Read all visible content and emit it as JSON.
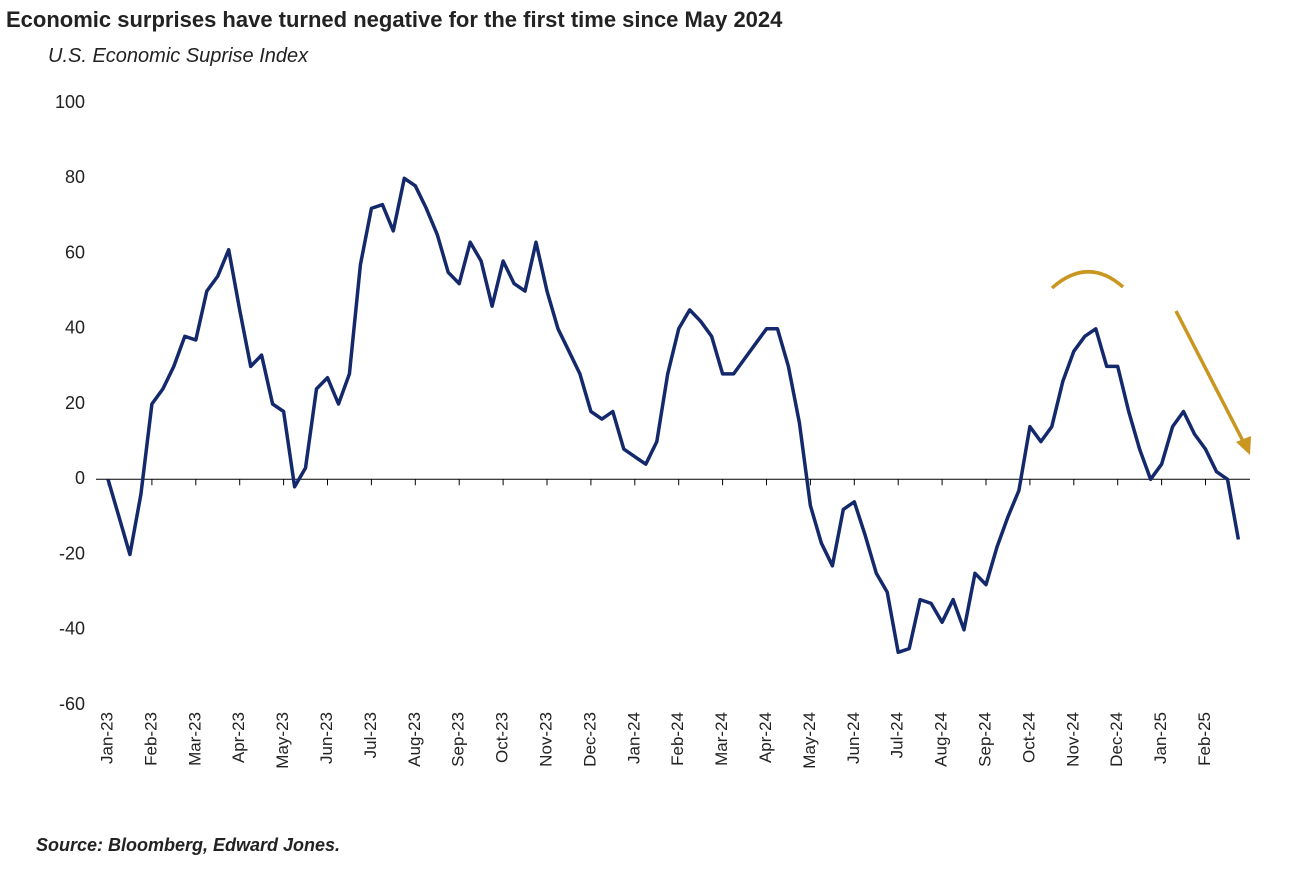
{
  "chart_data": {
    "type": "line",
    "title": "Economic surprises have turned negative for the first time since May 2024",
    "subtitle": "U.S. Economic Suprise Index",
    "source": "Source: Bloomberg, Edward Jones.",
    "categories": [
      "Jan-23",
      null,
      null,
      null,
      "Feb-23",
      null,
      null,
      null,
      "Mar-23",
      null,
      null,
      null,
      "Apr-23",
      null,
      null,
      null,
      "May-23",
      null,
      null,
      null,
      "Jun-23",
      null,
      null,
      null,
      "Jul-23",
      null,
      null,
      null,
      "Aug-23",
      null,
      null,
      null,
      "Sep-23",
      null,
      null,
      null,
      "Oct-23",
      null,
      null,
      null,
      "Nov-23",
      null,
      null,
      null,
      "Dec-23",
      null,
      null,
      null,
      "Jan-24",
      null,
      null,
      null,
      "Feb-24",
      null,
      null,
      null,
      "Mar-24",
      null,
      null,
      null,
      "Apr-24",
      null,
      null,
      null,
      "May-24",
      null,
      null,
      null,
      "Jun-24",
      null,
      null,
      null,
      "Jul-24",
      null,
      null,
      null,
      "Aug-24",
      null,
      null,
      null,
      "Sep-24",
      null,
      null,
      null,
      "Oct-24",
      null,
      null,
      null,
      "Nov-24",
      null,
      null,
      null,
      "Dec-24",
      null,
      null,
      null,
      "Jan-25",
      null,
      null,
      null,
      "Feb-25",
      null,
      null,
      null
    ],
    "series": [
      {
        "name": "U.S. Economic Suprise Index",
        "color": "#14296b",
        "values": [
          0,
          -10,
          -20,
          -4,
          20,
          24,
          30,
          38,
          37,
          50,
          54,
          61,
          45,
          30,
          33,
          20,
          18,
          -2,
          3,
          24,
          27,
          20,
          28,
          57,
          72,
          73,
          66,
          80,
          78,
          72,
          65,
          55,
          52,
          63,
          58,
          46,
          58,
          52,
          50,
          63,
          50,
          40,
          34,
          28,
          18,
          16,
          18,
          8,
          6,
          4,
          10,
          28,
          40,
          45,
          42,
          38,
          28,
          28,
          32,
          36,
          40,
          40,
          30,
          15,
          -7,
          -17,
          -23,
          -8,
          -6,
          -15,
          -25,
          -30,
          -46,
          -45,
          -32,
          -33,
          -38,
          -32,
          -40,
          -25,
          -28,
          -18,
          -10,
          -3,
          14,
          10,
          14,
          26,
          34,
          38,
          40,
          30,
          30,
          18,
          8,
          0,
          4,
          14,
          18,
          12,
          8,
          2,
          0,
          -16
        ]
      }
    ],
    "ylim": [
      -60,
      100
    ],
    "yticks": [
      -60,
      -40,
      -20,
      0,
      20,
      40,
      60,
      80,
      100
    ],
    "grid": false
  }
}
